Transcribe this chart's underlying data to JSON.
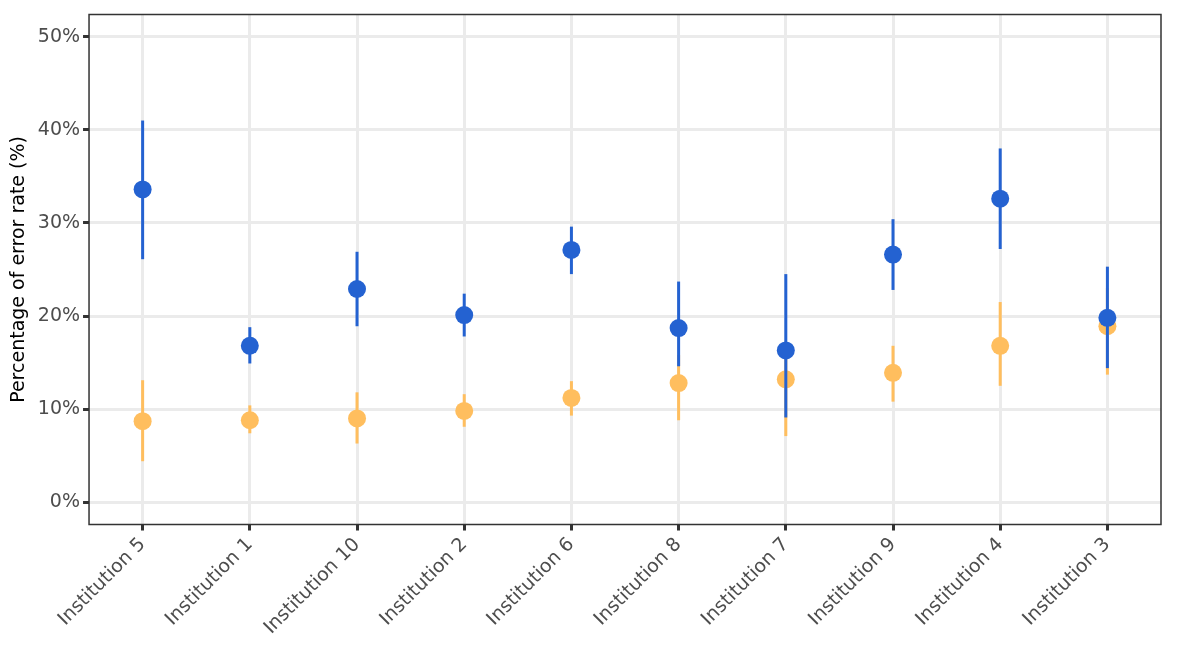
{
  "chart_data": {
    "type": "scatter",
    "ylabel": "Percentage of error rate (%)",
    "categories": [
      "Institution 5",
      "Institution 1",
      "Institution 10",
      "Institution 2",
      "Institution 6",
      "Institution 8",
      "Institution 7",
      "Institution 9",
      "Institution 4",
      "Institution 3"
    ],
    "series": [
      {
        "color": "#ffbe5e",
        "values": [
          8.7,
          8.8,
          9.0,
          9.8,
          11.2,
          12.8,
          13.2,
          13.9,
          16.8,
          18.9
        ],
        "errors": [
          [
            4.4,
            13.1
          ],
          [
            7.4,
            10.4
          ],
          [
            6.3,
            11.8
          ],
          [
            8.1,
            11.6
          ],
          [
            9.3,
            13.0
          ],
          [
            8.8,
            15.8
          ],
          [
            7.1,
            15.5
          ],
          [
            10.8,
            16.8
          ],
          [
            12.5,
            21.5
          ],
          [
            13.7,
            23.0
          ]
        ]
      },
      {
        "color": "#2462d1",
        "values": [
          33.6,
          16.8,
          22.9,
          20.1,
          27.1,
          18.7,
          16.3,
          26.6,
          32.6,
          19.8
        ],
        "errors": [
          [
            26.1,
            41.0
          ],
          [
            14.9,
            18.8
          ],
          [
            18.9,
            26.9
          ],
          [
            17.8,
            22.4
          ],
          [
            24.5,
            29.6
          ],
          [
            14.6,
            23.7
          ],
          [
            9.1,
            24.5
          ],
          [
            22.8,
            30.4
          ],
          [
            27.2,
            38.0
          ],
          [
            14.4,
            25.3
          ]
        ]
      }
    ],
    "ylim": [
      -2.4,
      52.4
    ],
    "yticks": [
      {
        "value": 0,
        "label": "0%"
      },
      {
        "value": 10,
        "label": "10%"
      },
      {
        "value": 20,
        "label": "20%"
      },
      {
        "value": 30,
        "label": "30%"
      },
      {
        "value": 40,
        "label": "40%"
      },
      {
        "value": 50,
        "label": "50%"
      }
    ],
    "grid": true,
    "legend": false,
    "marker": "circle"
  }
}
